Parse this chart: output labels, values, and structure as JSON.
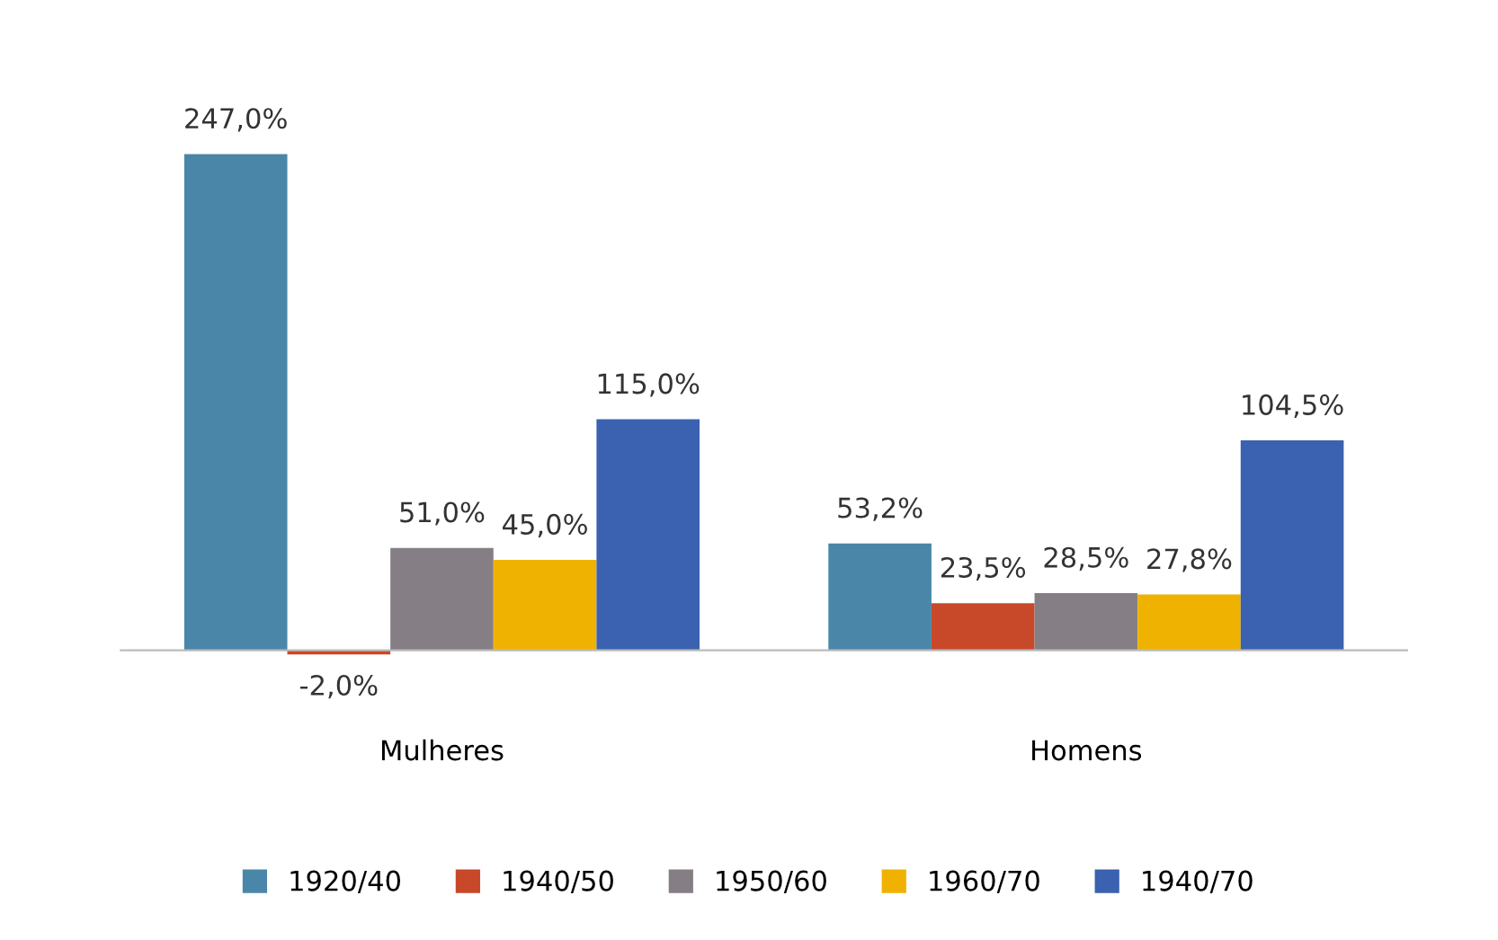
{
  "chart_data": {
    "type": "bar",
    "categories": [
      "Mulheres",
      "Homens"
    ],
    "series": [
      {
        "name": "1920/40",
        "color": "#4a86a8",
        "values": [
          247.0,
          53.2
        ],
        "value_labels": [
          "247,0%",
          "53,2%"
        ]
      },
      {
        "name": "1940/50",
        "color": "#c8482a",
        "values": [
          -2.0,
          23.5
        ],
        "value_labels": [
          "-2,0%",
          "23,5%"
        ]
      },
      {
        "name": "1950/60",
        "color": "#857f85",
        "values": [
          51.0,
          28.5
        ],
        "value_labels": [
          "51,0%",
          "28,5%"
        ]
      },
      {
        "name": "1960/70",
        "color": "#f0b200",
        "values": [
          45.0,
          27.8
        ],
        "value_labels": [
          "45,0%",
          "27,8%"
        ]
      },
      {
        "name": "1940/70",
        "color": "#3a62b0",
        "values": [
          115.0,
          104.5
        ],
        "value_labels": [
          "115,0%",
          "104,5%"
        ]
      }
    ],
    "legend": "bottom",
    "grid": false
  }
}
